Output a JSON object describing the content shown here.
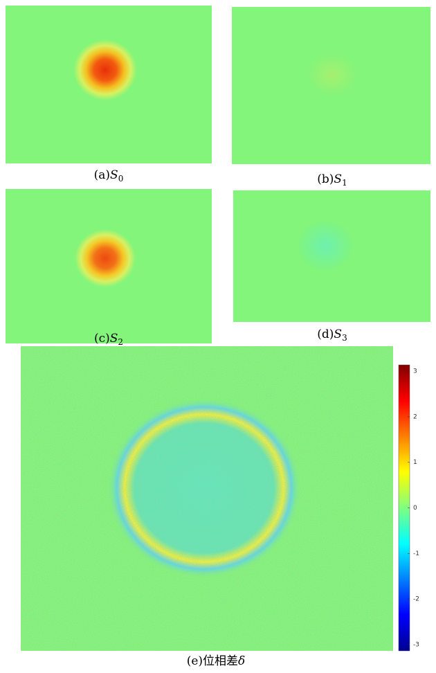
{
  "panels": [
    {
      "label": "(a)",
      "symbol": "S",
      "subscript": "0"
    },
    {
      "label": "(b)",
      "symbol": "S",
      "subscript": "1"
    },
    {
      "label": "(c)",
      "symbol": "S",
      "subscript": "2"
    },
    {
      "label": "(d)",
      "symbol": "S",
      "subscript": "3"
    }
  ],
  "main_panel": {
    "label": "(e)",
    "text": "位相差",
    "symbol": "δ"
  },
  "colorbar": {
    "lim": [
      -3.14,
      3.14
    ],
    "ticks": [
      3,
      2,
      1,
      0,
      -1,
      -2,
      -3
    ]
  }
}
